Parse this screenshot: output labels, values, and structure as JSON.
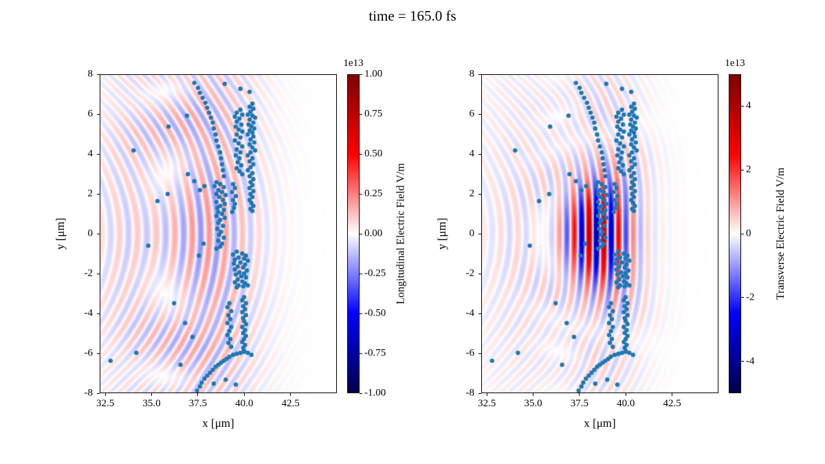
{
  "chart_data": {
    "type": "scatter",
    "title": "time = 165.0 fs",
    "panels": [
      {
        "name": "longitudinal-field-panel",
        "xlabel": "x [μm]",
        "ylabel": "y [μm]",
        "xlim": [
          32.2,
          45.0
        ],
        "ylim": [
          -8,
          8
        ],
        "xticks": [
          32.5,
          35.0,
          37.5,
          40.0,
          42.5
        ],
        "xtick_labels": [
          "32.5",
          "35.0",
          "37.5",
          "40.0",
          "42.5"
        ],
        "yticks": [
          8,
          6,
          4,
          2,
          0,
          -2,
          -4,
          -6,
          -8
        ],
        "ytick_labels": [
          "8",
          "6",
          "4",
          "2",
          "0",
          "-2",
          "-4",
          "-6",
          "-8"
        ],
        "grid": false,
        "colorbar": {
          "label": "Longitudinal Electric Field V/m",
          "offset_scale": "1e13",
          "vmin": -1.0,
          "vmax": 1.0,
          "ticks": [
            1.0,
            0.75,
            0.5,
            0.25,
            0.0,
            -0.25,
            -0.5,
            -0.75,
            -1.0
          ],
          "tick_labels": [
            "1.00",
            "0.75",
            "0.50",
            "0.25",
            "0.00",
            "-0.25",
            "-0.50",
            "-0.75",
            "-1.00"
          ],
          "colormap": "seismic"
        },
        "field_components": [
          {
            "wavelength": 0.9,
            "cx": 40.6,
            "cy": 0,
            "curv": 0.05,
            "amp": 0.2,
            "env": [
              38.0,
              2.8,
              0,
              12
            ]
          },
          {
            "wavelength": 0.95,
            "cx": 40.6,
            "cy": 0,
            "curv": 0.075,
            "amp": 0.13,
            "env": [
              34.5,
              2.8,
              0,
              10
            ]
          }
        ]
      },
      {
        "name": "transverse-field-panel",
        "xlabel": "x [μm]",
        "ylabel": "y [μm]",
        "xlim": [
          32.2,
          45.0
        ],
        "ylim": [
          -8,
          8
        ],
        "xticks": [
          32.5,
          35.0,
          37.5,
          40.0,
          42.5
        ],
        "xtick_labels": [
          "32.5",
          "35.0",
          "37.5",
          "40.0",
          "42.5"
        ],
        "yticks": [
          8,
          6,
          4,
          2,
          0,
          -2,
          -4,
          -6,
          -8
        ],
        "ytick_labels": [
          "8",
          "6",
          "4",
          "2",
          "0",
          "-2",
          "-4",
          "-6",
          "-8"
        ],
        "grid": false,
        "colorbar": {
          "label": "Transverse Electric Field V/m",
          "offset_scale": "1e13",
          "vmin": -5.0,
          "vmax": 5.0,
          "ticks": [
            4,
            2,
            0,
            -2,
            -4
          ],
          "tick_labels": [
            "4",
            "2",
            "0",
            "-2",
            "-4"
          ],
          "colormap": "seismic"
        },
        "field_components": [
          {
            "wavelength": 0.8,
            "cx": 38.6,
            "cy": 0,
            "curv": 0.0,
            "amp": 0.55,
            "env": [
              38.6,
              1.6,
              0,
              2.0
            ]
          },
          {
            "wavelength": 0.8,
            "cx": 38.6,
            "cy": 0,
            "curv": 0.015,
            "amp": 0.22,
            "env": [
              38.6,
              2.6,
              0,
              4.0
            ]
          },
          {
            "wavelength": 0.85,
            "cx": 38.8,
            "cy": 0,
            "curv": 0.04,
            "amp": 0.12,
            "env": [
              38.8,
              2.2,
              0,
              12
            ]
          },
          {
            "wavelength": 0.95,
            "cx": 40.6,
            "cy": 0,
            "curv": 0.075,
            "amp": 0.08,
            "env": [
              34.5,
              2.8,
              0,
              10
            ]
          }
        ]
      }
    ],
    "scatter": {
      "color": "#1f77b4",
      "radius": 3.2,
      "points": [
        [
          40.45,
          6.55
        ],
        [
          40.3,
          6.4
        ],
        [
          40.5,
          6.3
        ],
        [
          40.35,
          6.15
        ],
        [
          40.2,
          6.0
        ],
        [
          40.45,
          5.95
        ],
        [
          40.6,
          5.85
        ],
        [
          40.3,
          5.75
        ],
        [
          40.5,
          5.6
        ],
        [
          40.25,
          5.5
        ],
        [
          40.4,
          5.4
        ],
        [
          40.55,
          5.3
        ],
        [
          40.3,
          5.2
        ],
        [
          40.45,
          5.1
        ],
        [
          40.2,
          5.0
        ],
        [
          40.5,
          4.9
        ],
        [
          40.35,
          4.75
        ],
        [
          40.55,
          4.6
        ],
        [
          40.3,
          4.5
        ],
        [
          40.45,
          4.35
        ],
        [
          40.6,
          4.2
        ],
        [
          40.35,
          4.1
        ],
        [
          40.2,
          3.95
        ],
        [
          40.45,
          3.8
        ],
        [
          40.3,
          3.65
        ],
        [
          40.5,
          3.5
        ],
        [
          40.35,
          3.35
        ],
        [
          40.2,
          3.2
        ],
        [
          40.45,
          3.05
        ],
        [
          40.3,
          2.9
        ],
        [
          40.5,
          2.75
        ],
        [
          40.35,
          2.6
        ],
        [
          40.45,
          2.45
        ],
        [
          40.3,
          2.3
        ],
        [
          40.5,
          2.15
        ],
        [
          40.35,
          2.0
        ],
        [
          40.45,
          1.85
        ],
        [
          40.3,
          1.7
        ],
        [
          40.4,
          1.55
        ],
        [
          40.5,
          1.4
        ],
        [
          40.35,
          1.25
        ],
        [
          40.45,
          1.15
        ],
        [
          39.8,
          6.25
        ],
        [
          39.6,
          6.1
        ],
        [
          39.9,
          6.0
        ],
        [
          39.5,
          5.9
        ],
        [
          39.75,
          5.8
        ],
        [
          39.6,
          5.65
        ],
        [
          39.85,
          5.5
        ],
        [
          39.55,
          5.4
        ],
        [
          39.7,
          5.25
        ],
        [
          39.9,
          5.15
        ],
        [
          39.6,
          5.0
        ],
        [
          39.8,
          4.85
        ],
        [
          39.5,
          4.7
        ],
        [
          39.7,
          4.55
        ],
        [
          39.9,
          4.4
        ],
        [
          39.6,
          4.25
        ],
        [
          39.8,
          4.1
        ],
        [
          39.55,
          3.95
        ],
        [
          39.75,
          3.8
        ],
        [
          39.65,
          3.6
        ],
        [
          39.85,
          3.45
        ],
        [
          39.6,
          3.3
        ],
        [
          39.75,
          3.15
        ],
        [
          39.9,
          3.0
        ],
        [
          37.3,
          7.6
        ],
        [
          37.5,
          7.35
        ],
        [
          37.6,
          7.1
        ],
        [
          37.75,
          6.85
        ],
        [
          37.9,
          6.6
        ],
        [
          38.0,
          6.35
        ],
        [
          38.1,
          6.1
        ],
        [
          38.2,
          5.85
        ],
        [
          38.3,
          5.6
        ],
        [
          38.35,
          5.3
        ],
        [
          38.45,
          5.0
        ],
        [
          38.5,
          4.7
        ],
        [
          38.6,
          4.4
        ],
        [
          38.7,
          4.1
        ],
        [
          38.75,
          3.8
        ],
        [
          38.8,
          3.5
        ],
        [
          38.85,
          3.2
        ],
        [
          38.9,
          2.9
        ],
        [
          38.95,
          7.55
        ],
        [
          39.8,
          7.3
        ],
        [
          40.3,
          7.15
        ],
        [
          36.9,
          5.95
        ],
        [
          35.9,
          5.4
        ],
        [
          34.0,
          4.2
        ],
        [
          35.3,
          1.65
        ],
        [
          35.85,
          2.0
        ],
        [
          36.95,
          3.0
        ],
        [
          37.3,
          2.65
        ],
        [
          37.6,
          2.2
        ],
        [
          37.85,
          2.4
        ],
        [
          38.5,
          2.6
        ],
        [
          38.7,
          2.5
        ],
        [
          38.4,
          2.4
        ],
        [
          38.9,
          2.35
        ],
        [
          38.6,
          2.2
        ],
        [
          38.8,
          2.1
        ],
        [
          38.5,
          2.0
        ],
        [
          39.0,
          1.95
        ],
        [
          38.65,
          1.85
        ],
        [
          38.85,
          1.7
        ],
        [
          38.5,
          1.6
        ],
        [
          38.95,
          1.5
        ],
        [
          38.7,
          1.4
        ],
        [
          38.55,
          1.3
        ],
        [
          38.9,
          1.2
        ],
        [
          38.6,
          1.1
        ],
        [
          38.8,
          1.0
        ],
        [
          38.5,
          0.9
        ],
        [
          38.95,
          0.8
        ],
        [
          38.7,
          0.7
        ],
        [
          38.6,
          0.55
        ],
        [
          38.85,
          0.4
        ],
        [
          38.55,
          0.25
        ],
        [
          38.75,
          0.1
        ],
        [
          38.65,
          -0.05
        ],
        [
          38.9,
          -0.2
        ],
        [
          38.6,
          -0.35
        ],
        [
          38.8,
          -0.5
        ],
        [
          38.7,
          -0.65
        ],
        [
          38.5,
          -0.75
        ],
        [
          39.4,
          2.5
        ],
        [
          39.5,
          2.3
        ],
        [
          39.35,
          2.1
        ],
        [
          39.55,
          1.9
        ],
        [
          39.4,
          1.7
        ],
        [
          39.5,
          1.5
        ],
        [
          39.45,
          1.3
        ],
        [
          39.35,
          1.1
        ],
        [
          34.8,
          -0.6
        ],
        [
          36.2,
          -3.5
        ],
        [
          36.8,
          -4.5
        ],
        [
          37.2,
          -5.2
        ],
        [
          37.8,
          -0.5
        ],
        [
          37.55,
          -1.1
        ],
        [
          39.6,
          -0.9
        ],
        [
          39.9,
          -1.0
        ],
        [
          39.4,
          -1.05
        ],
        [
          40.1,
          -1.1
        ],
        [
          39.7,
          -1.2
        ],
        [
          40.0,
          -1.25
        ],
        [
          39.5,
          -1.3
        ],
        [
          40.2,
          -1.35
        ],
        [
          39.8,
          -1.45
        ],
        [
          39.45,
          -1.5
        ],
        [
          40.05,
          -1.55
        ],
        [
          39.65,
          -1.65
        ],
        [
          39.95,
          -1.7
        ],
        [
          39.5,
          -1.8
        ],
        [
          40.15,
          -1.85
        ],
        [
          39.75,
          -1.95
        ],
        [
          40.0,
          -2.0
        ],
        [
          39.55,
          -2.05
        ],
        [
          39.85,
          -2.15
        ],
        [
          40.1,
          -2.2
        ],
        [
          39.65,
          -2.3
        ],
        [
          39.9,
          -2.4
        ],
        [
          39.5,
          -2.45
        ],
        [
          40.05,
          -2.5
        ],
        [
          39.7,
          -2.6
        ],
        [
          39.95,
          -2.65
        ],
        [
          39.6,
          -2.7
        ],
        [
          40.2,
          -2.6
        ],
        [
          40.0,
          -3.2
        ],
        [
          39.9,
          -3.35
        ],
        [
          40.1,
          -3.5
        ],
        [
          39.95,
          -3.65
        ],
        [
          40.05,
          -3.8
        ],
        [
          39.9,
          -3.95
        ],
        [
          40.1,
          -4.1
        ],
        [
          39.95,
          -4.25
        ],
        [
          40.0,
          -4.4
        ],
        [
          40.1,
          -4.55
        ],
        [
          39.9,
          -4.7
        ],
        [
          40.05,
          -4.85
        ],
        [
          39.95,
          -5.0
        ],
        [
          40.1,
          -5.15
        ],
        [
          40.0,
          -5.3
        ],
        [
          39.9,
          -5.45
        ],
        [
          40.05,
          -5.6
        ],
        [
          39.95,
          -5.75
        ],
        [
          40.0,
          -5.9
        ],
        [
          39.2,
          -3.5
        ],
        [
          39.1,
          -3.7
        ],
        [
          39.3,
          -3.9
        ],
        [
          39.15,
          -4.1
        ],
        [
          39.25,
          -4.3
        ],
        [
          39.1,
          -4.5
        ],
        [
          39.3,
          -4.7
        ],
        [
          39.2,
          -4.9
        ],
        [
          39.1,
          -5.1
        ],
        [
          39.25,
          -5.3
        ],
        [
          39.15,
          -5.5
        ],
        [
          39.3,
          -5.7
        ],
        [
          37.45,
          -7.9
        ],
        [
          37.6,
          -7.7
        ],
        [
          37.7,
          -7.5
        ],
        [
          37.85,
          -7.3
        ],
        [
          38.0,
          -7.15
        ],
        [
          38.15,
          -7.0
        ],
        [
          38.3,
          -6.85
        ],
        [
          38.45,
          -6.7
        ],
        [
          38.6,
          -6.6
        ],
        [
          38.75,
          -6.5
        ],
        [
          38.9,
          -6.4
        ],
        [
          39.05,
          -6.3
        ],
        [
          39.2,
          -6.2
        ],
        [
          39.4,
          -6.1
        ],
        [
          39.6,
          -6.05
        ],
        [
          39.8,
          -6.0
        ],
        [
          40.0,
          -5.95
        ],
        [
          40.2,
          -6.0
        ],
        [
          40.4,
          -6.1
        ],
        [
          38.35,
          -7.55
        ],
        [
          39.0,
          -7.35
        ],
        [
          39.55,
          -7.6
        ],
        [
          32.75,
          -6.4
        ],
        [
          34.15,
          -6.0
        ],
        [
          36.55,
          -6.6
        ]
      ]
    }
  }
}
